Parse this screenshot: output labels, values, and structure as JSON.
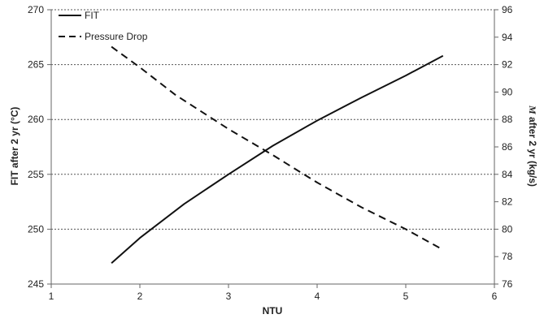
{
  "chart_data": {
    "type": "line",
    "xlabel": "NTU",
    "ylabel_left": "FIT after 2 yr (°C)",
    "ylabel_right_italic": "M",
    "ylabel_right_rest": " after 2 yr (kg/s)",
    "xlim": [
      1,
      6
    ],
    "ylim_left": [
      245,
      270
    ],
    "ylim_right": [
      76,
      96
    ],
    "x_ticks": [
      "1",
      "2",
      "3",
      "4",
      "5",
      "6"
    ],
    "y_left_ticks": [
      "245",
      "250",
      "255",
      "260",
      "265",
      "270"
    ],
    "y_right_ticks": [
      "76",
      "78",
      "80",
      "82",
      "84",
      "86",
      "88",
      "90",
      "92",
      "94",
      "96"
    ],
    "grid": "horizontal dotted",
    "legend_position": "top-left",
    "series": [
      {
        "name": "FIT",
        "axis": "left",
        "style": "solid",
        "x": [
          1.68,
          2.0,
          2.5,
          3.0,
          3.5,
          4.0,
          4.5,
          5.0,
          5.42
        ],
        "y": [
          246.9,
          249.2,
          252.3,
          255.0,
          257.6,
          259.9,
          262.0,
          264.0,
          265.8
        ]
      },
      {
        "name": "Pressure Drop",
        "axis": "right",
        "style": "dashed",
        "x": [
          1.68,
          2.0,
          2.4,
          3.0,
          3.5,
          4.0,
          4.5,
          5.0,
          5.42
        ],
        "y": [
          93.3,
          91.8,
          89.8,
          87.3,
          85.4,
          83.4,
          81.6,
          80.0,
          78.5
        ]
      }
    ]
  }
}
